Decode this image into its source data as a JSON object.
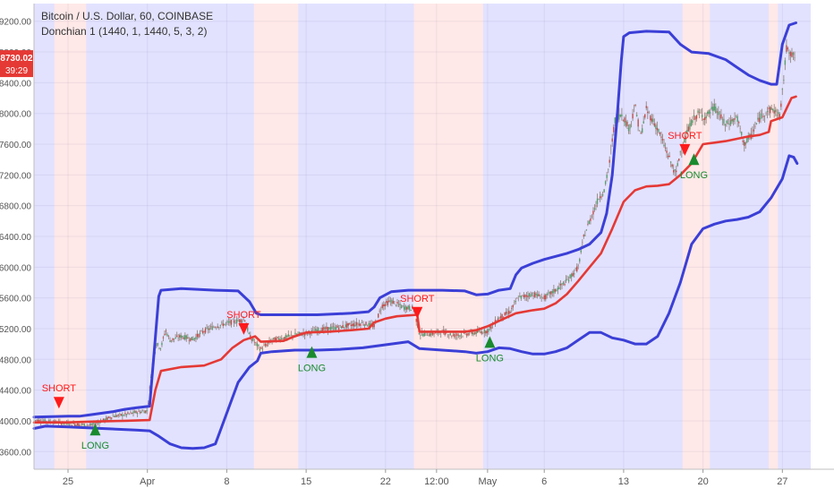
{
  "header": {
    "symbol_line": "Bitcoin / U.S. Dollar, 60, COINBASE",
    "indicator_line": "Donchian 1 (1440, 1, 1440, 5, 3, 2)"
  },
  "price_badge": {
    "price": "8730.02",
    "countdown": "39:29"
  },
  "colors": {
    "band": "#3b3fd6",
    "mid": "#e53935",
    "candle": "#8c7b72",
    "bull_bg": "rgba(110,110,255,0.20)",
    "bear_bg": "rgba(255,140,140,0.20)",
    "short_marker": "#ff1a1a",
    "long_marker": "#1a8a2e",
    "badge": "#e53935"
  },
  "chart_data": {
    "type": "line",
    "x_axis_ticks": [
      {
        "day": 25,
        "label": "25"
      },
      {
        "day": 32,
        "label": "Apr"
      },
      {
        "day": 39,
        "label": "8"
      },
      {
        "day": 46,
        "label": "15"
      },
      {
        "day": 53,
        "label": "22"
      },
      {
        "day": 57.5,
        "label": "12:00"
      },
      {
        "day": 62,
        "label": "May"
      },
      {
        "day": 67,
        "label": "6"
      },
      {
        "day": 74,
        "label": "13"
      },
      {
        "day": 81,
        "label": "20"
      },
      {
        "day": 88,
        "label": "27"
      }
    ],
    "y_axis_ticks": [
      3600,
      4000,
      4400,
      4800,
      5200,
      5600,
      6000,
      6400,
      6800,
      7200,
      7600,
      8000,
      8400,
      8800,
      9200
    ],
    "ylim": [
      3370,
      9430
    ],
    "xlim": [
      22,
      90.5
    ],
    "series": [
      {
        "key": "upper",
        "points": [
          [
            22,
            4050
          ],
          [
            25,
            4060
          ],
          [
            26,
            4060
          ],
          [
            27,
            4080
          ],
          [
            28,
            4100
          ],
          [
            29,
            4120
          ],
          [
            30,
            4150
          ],
          [
            31,
            4170
          ],
          [
            32.2,
            4190
          ],
          [
            32.6,
            4900
          ],
          [
            33,
            5620
          ],
          [
            33.2,
            5700
          ],
          [
            35,
            5720
          ],
          [
            38,
            5700
          ],
          [
            40,
            5690
          ],
          [
            41,
            5550
          ],
          [
            41.6,
            5400
          ],
          [
            42,
            5380
          ],
          [
            45,
            5380
          ],
          [
            47,
            5380
          ],
          [
            50,
            5400
          ],
          [
            51.5,
            5420
          ],
          [
            52,
            5480
          ],
          [
            52.5,
            5600
          ],
          [
            53.5,
            5680
          ],
          [
            55,
            5700
          ],
          [
            58,
            5700
          ],
          [
            60,
            5690
          ],
          [
            61,
            5640
          ],
          [
            62,
            5650
          ],
          [
            63,
            5700
          ],
          [
            64,
            5720
          ],
          [
            64.5,
            5900
          ],
          [
            65,
            5990
          ],
          [
            66,
            6050
          ],
          [
            67,
            6100
          ],
          [
            68,
            6140
          ],
          [
            69,
            6180
          ],
          [
            70,
            6230
          ],
          [
            71,
            6300
          ],
          [
            72,
            6450
          ],
          [
            72.5,
            6700
          ],
          [
            73,
            7200
          ],
          [
            73.4,
            7900
          ],
          [
            73.8,
            8700
          ],
          [
            74,
            9000
          ],
          [
            74.5,
            9050
          ],
          [
            76,
            9070
          ],
          [
            78,
            9060
          ],
          [
            79,
            8900
          ],
          [
            80,
            8800
          ],
          [
            81.5,
            8780
          ],
          [
            83,
            8700
          ],
          [
            84,
            8600
          ],
          [
            85,
            8500
          ],
          [
            86,
            8430
          ],
          [
            87,
            8380
          ],
          [
            87.5,
            8380
          ],
          [
            88,
            8900
          ],
          [
            88.6,
            9150
          ],
          [
            89.2,
            9180
          ]
        ]
      },
      {
        "key": "mid",
        "points": [
          [
            22,
            3980
          ],
          [
            25,
            3980
          ],
          [
            27,
            3990
          ],
          [
            30,
            4000
          ],
          [
            32.2,
            4010
          ],
          [
            32.7,
            4400
          ],
          [
            33.2,
            4650
          ],
          [
            35,
            4700
          ],
          [
            37,
            4720
          ],
          [
            38.5,
            4800
          ],
          [
            39.5,
            4950
          ],
          [
            40.5,
            5050
          ],
          [
            41.5,
            5100
          ],
          [
            42,
            5030
          ],
          [
            44,
            5040
          ],
          [
            45,
            5100
          ],
          [
            46,
            5150
          ],
          [
            48,
            5160
          ],
          [
            50,
            5180
          ],
          [
            51.5,
            5200
          ],
          [
            52,
            5280
          ],
          [
            53,
            5330
          ],
          [
            54,
            5360
          ],
          [
            55.8,
            5380
          ],
          [
            56,
            5160
          ],
          [
            57,
            5160
          ],
          [
            60,
            5160
          ],
          [
            61,
            5180
          ],
          [
            62,
            5230
          ],
          [
            63,
            5300
          ],
          [
            64.5,
            5400
          ],
          [
            66,
            5440
          ],
          [
            67,
            5460
          ],
          [
            68,
            5530
          ],
          [
            69,
            5650
          ],
          [
            70,
            5820
          ],
          [
            71,
            6000
          ],
          [
            72,
            6180
          ],
          [
            73,
            6500
          ],
          [
            74,
            6850
          ],
          [
            75,
            7000
          ],
          [
            76,
            7050
          ],
          [
            77,
            7060
          ],
          [
            78,
            7080
          ],
          [
            79,
            7200
          ],
          [
            80,
            7350
          ],
          [
            81,
            7600
          ],
          [
            82,
            7620
          ],
          [
            83,
            7640
          ],
          [
            85,
            7700
          ],
          [
            86,
            7720
          ],
          [
            86.8,
            7760
          ],
          [
            87,
            7900
          ],
          [
            88,
            7950
          ],
          [
            88.8,
            8200
          ],
          [
            89.2,
            8220
          ]
        ]
      },
      {
        "key": "lower",
        "points": [
          [
            22,
            3900
          ],
          [
            23,
            3930
          ],
          [
            25,
            3920
          ],
          [
            28,
            3900
          ],
          [
            31,
            3880
          ],
          [
            32.2,
            3870
          ],
          [
            33,
            3800
          ],
          [
            34,
            3700
          ],
          [
            35,
            3650
          ],
          [
            36,
            3640
          ],
          [
            37,
            3650
          ],
          [
            38,
            3700
          ],
          [
            38.5,
            3900
          ],
          [
            39,
            4100
          ],
          [
            40,
            4500
          ],
          [
            41,
            4700
          ],
          [
            41.7,
            4780
          ],
          [
            42,
            4880
          ],
          [
            43,
            4900
          ],
          [
            45,
            4920
          ],
          [
            47,
            4920
          ],
          [
            49,
            4930
          ],
          [
            51,
            4950
          ],
          [
            53,
            4990
          ],
          [
            55,
            5030
          ],
          [
            56,
            4940
          ],
          [
            58,
            4920
          ],
          [
            60,
            4900
          ],
          [
            61,
            4880
          ],
          [
            62,
            4900
          ],
          [
            63,
            4950
          ],
          [
            64,
            4940
          ],
          [
            65,
            4900
          ],
          [
            66,
            4870
          ],
          [
            67,
            4870
          ],
          [
            68,
            4900
          ],
          [
            69,
            4950
          ],
          [
            70,
            5050
          ],
          [
            71,
            5150
          ],
          [
            72,
            5150
          ],
          [
            73,
            5080
          ],
          [
            74,
            5050
          ],
          [
            75,
            5000
          ],
          [
            76,
            5000
          ],
          [
            77,
            5100
          ],
          [
            78,
            5400
          ],
          [
            79,
            5800
          ],
          [
            80,
            6300
          ],
          [
            81,
            6500
          ],
          [
            82,
            6560
          ],
          [
            83,
            6600
          ],
          [
            84,
            6620
          ],
          [
            85,
            6650
          ],
          [
            86,
            6720
          ],
          [
            87,
            6900
          ],
          [
            88,
            7150
          ],
          [
            88.6,
            7450
          ],
          [
            89,
            7430
          ],
          [
            89.3,
            7350
          ]
        ]
      },
      {
        "key": "price",
        "points": [
          [
            22,
            4010
          ],
          [
            24,
            3980
          ],
          [
            26,
            3950
          ],
          [
            27,
            3940
          ],
          [
            28,
            4000
          ],
          [
            29,
            4060
          ],
          [
            30,
            4080
          ],
          [
            31,
            4110
          ],
          [
            32,
            4130
          ],
          [
            32.4,
            4700
          ],
          [
            32.8,
            5000
          ],
          [
            33.2,
            4950
          ],
          [
            33.6,
            5180
          ],
          [
            34,
            5050
          ],
          [
            35,
            5100
          ],
          [
            36,
            5060
          ],
          [
            37,
            5170
          ],
          [
            38,
            5230
          ],
          [
            39,
            5270
          ],
          [
            40,
            5300
          ],
          [
            40.6,
            5320
          ],
          [
            41,
            5100
          ],
          [
            42,
            4930
          ],
          [
            43,
            5050
          ],
          [
            44,
            5080
          ],
          [
            45,
            5120
          ],
          [
            46,
            5140
          ],
          [
            47,
            5180
          ],
          [
            48,
            5200
          ],
          [
            49,
            5220
          ],
          [
            50,
            5250
          ],
          [
            51,
            5270
          ],
          [
            52,
            5230
          ],
          [
            52.7,
            5500
          ],
          [
            53.5,
            5560
          ],
          [
            54.5,
            5480
          ],
          [
            55.5,
            5460
          ],
          [
            56,
            5130
          ],
          [
            57,
            5130
          ],
          [
            58,
            5160
          ],
          [
            59,
            5110
          ],
          [
            60,
            5130
          ],
          [
            61,
            5150
          ],
          [
            62,
            5170
          ],
          [
            62.5,
            5250
          ],
          [
            63,
            5340
          ],
          [
            64,
            5420
          ],
          [
            64.7,
            5600
          ],
          [
            66,
            5650
          ],
          [
            67,
            5600
          ],
          [
            68,
            5700
          ],
          [
            69,
            5820
          ],
          [
            70,
            6000
          ],
          [
            70.5,
            6400
          ],
          [
            71,
            6600
          ],
          [
            71.8,
            6900
          ],
          [
            72.3,
            7000
          ],
          [
            72.8,
            7400
          ],
          [
            73.2,
            7900
          ],
          [
            73.8,
            8000
          ],
          [
            74.5,
            7800
          ],
          [
            75,
            8100
          ],
          [
            75.5,
            7700
          ],
          [
            76,
            8050
          ],
          [
            77,
            7800
          ],
          [
            77.8,
            7500
          ],
          [
            78.2,
            7350
          ],
          [
            78.6,
            7200
          ],
          [
            79,
            7500
          ],
          [
            79.5,
            7700
          ],
          [
            80,
            7900
          ],
          [
            80.6,
            8000
          ],
          [
            81.2,
            7950
          ],
          [
            82,
            8080
          ],
          [
            83,
            7850
          ],
          [
            84,
            7950
          ],
          [
            84.6,
            7600
          ],
          [
            85.2,
            7700
          ],
          [
            86,
            7950
          ],
          [
            86.6,
            8030
          ],
          [
            87.2,
            8050
          ],
          [
            87.8,
            7960
          ],
          [
            88.4,
            8900
          ],
          [
            88.8,
            8760
          ],
          [
            89.1,
            8730
          ]
        ]
      }
    ],
    "background_regimes": [
      {
        "from": 22,
        "to": 23.8,
        "regime": "bull"
      },
      {
        "from": 23.8,
        "to": 26.6,
        "regime": "bear"
      },
      {
        "from": 26.6,
        "to": 41.4,
        "regime": "bull"
      },
      {
        "from": 41.4,
        "to": 45.3,
        "regime": "bear"
      },
      {
        "from": 45.3,
        "to": 55.5,
        "regime": "bull"
      },
      {
        "from": 55.5,
        "to": 61.6,
        "regime": "bear"
      },
      {
        "from": 61.6,
        "to": 79.2,
        "regime": "bull"
      },
      {
        "from": 79.2,
        "to": 81.6,
        "regime": "bear"
      },
      {
        "from": 81.6,
        "to": 86.8,
        "regime": "bull"
      },
      {
        "from": 86.8,
        "to": 87.6,
        "regime": "bear"
      },
      {
        "from": 87.6,
        "to": 90.5,
        "regime": "bull"
      }
    ],
    "signals": [
      {
        "type": "short",
        "label": "SHORT",
        "day": 24.2,
        "price": 4230
      },
      {
        "type": "long",
        "label": "LONG",
        "day": 27.4,
        "price": 3880
      },
      {
        "type": "short",
        "label": "SHORT",
        "day": 40.5,
        "price": 5190
      },
      {
        "type": "long",
        "label": "LONG",
        "day": 46.5,
        "price": 4890
      },
      {
        "type": "short",
        "label": "SHORT",
        "day": 55.8,
        "price": 5400
      },
      {
        "type": "long",
        "label": "LONG",
        "day": 62.2,
        "price": 5020
      },
      {
        "type": "short",
        "label": "SHORT",
        "day": 79.4,
        "price": 7520
      },
      {
        "type": "long",
        "label": "LONG",
        "day": 80.2,
        "price": 7400
      }
    ]
  }
}
